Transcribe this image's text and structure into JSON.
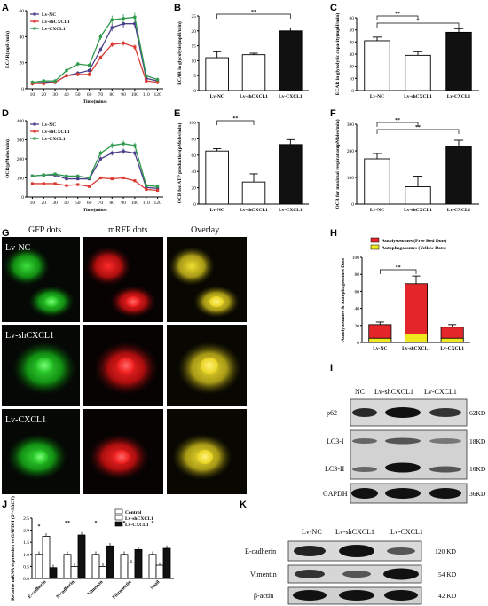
{
  "panels": {
    "A": "A",
    "B": "B",
    "C": "C",
    "D": "D",
    "E": "E",
    "F": "F",
    "G": "G",
    "H": "H",
    "I": "I",
    "J": "J",
    "K": "K"
  },
  "colors": {
    "nc": "#4a3f8a",
    "sh": "#d93a32",
    "cx": "#2f9a4c",
    "green_dot": "#19c419",
    "red_dot": "#e01010",
    "yellow_dot": "#d4c81a"
  },
  "chart_data": [
    {
      "id": "A",
      "type": "line",
      "ylabel": "ECAR(mpH/min)",
      "xlabel": "Time(mins)",
      "x": [
        10,
        20,
        30,
        40,
        50,
        60,
        70,
        80,
        90,
        100,
        110,
        120
      ],
      "xticks": [
        "10",
        "20",
        "30",
        "40",
        "50",
        "60",
        "70",
        "80",
        "90",
        "100",
        "110",
        "120"
      ],
      "yticks": [
        "0",
        "20",
        "40",
        "60"
      ],
      "ylim": [
        0,
        60
      ],
      "series": [
        {
          "name": "Lv-NC",
          "color": "#4a3f8a",
          "values": [
            4,
            5,
            5,
            10,
            12,
            14,
            30,
            47,
            50,
            50,
            8,
            6
          ]
        },
        {
          "name": "Lv-shCXCL1",
          "color": "#d93a32",
          "values": [
            4,
            4,
            5,
            10,
            11,
            11,
            24,
            34,
            35,
            32,
            6,
            5
          ]
        },
        {
          "name": "Lv-CXCL1",
          "color": "#2f9a4c",
          "values": [
            5,
            6,
            6,
            14,
            19,
            18,
            40,
            53,
            54,
            55,
            10,
            7
          ]
        }
      ]
    },
    {
      "id": "B",
      "type": "bar",
      "ylabel": "ECAR in glycolysis(mpH/min)",
      "categories": [
        "Lv-NC",
        "Lv-shCXCL1",
        "Lv-CXCL1"
      ],
      "values": [
        11,
        12,
        20
      ],
      "errors": [
        2,
        0.5,
        1
      ],
      "fills": [
        "#ffffff",
        "#ffffff",
        "#111111"
      ],
      "yticks": [
        "0",
        "5",
        "10",
        "15",
        "20",
        "25"
      ],
      "ylim": [
        0,
        25
      ],
      "sig": [
        {
          "from": 0,
          "to": 2,
          "label": "**"
        }
      ]
    },
    {
      "id": "C",
      "type": "bar",
      "ylabel": "ECAR in glycolytic capacity(mpH/min)",
      "categories": [
        "Lv-NC",
        "Lv-shCXCL1",
        "Lv-CXCL1"
      ],
      "values": [
        41,
        29,
        48
      ],
      "errors": [
        3,
        3,
        3
      ],
      "fills": [
        "#ffffff",
        "#ffffff",
        "#111111"
      ],
      "yticks": [
        "0",
        "10",
        "20",
        "30",
        "40",
        "50",
        "60"
      ],
      "ylim": [
        0,
        60
      ],
      "sig": [
        {
          "from": 0,
          "to": 1,
          "label": "**"
        },
        {
          "from": 0,
          "to": 2,
          "label": "*"
        }
      ]
    },
    {
      "id": "D",
      "type": "line",
      "ylabel": "OCR(pMoles/min)",
      "xlabel": "Time(mins)",
      "x": [
        10,
        20,
        30,
        40,
        50,
        60,
        70,
        80,
        90,
        100,
        110,
        120
      ],
      "xticks": [
        "10",
        "20",
        "30",
        "40",
        "50",
        "60",
        "70",
        "80",
        "90",
        "100",
        "110",
        "120"
      ],
      "yticks": [
        "0",
        "100",
        "200",
        "300",
        "400"
      ],
      "ylim": [
        0,
        400
      ],
      "series": [
        {
          "name": "Lv-NC",
          "color": "#4a3f8a",
          "values": [
            110,
            115,
            115,
            95,
            95,
            95,
            200,
            230,
            240,
            230,
            50,
            45
          ]
        },
        {
          "name": "Lv-shCXCL1",
          "color": "#d93a32",
          "values": [
            70,
            70,
            70,
            60,
            65,
            55,
            100,
            95,
            100,
            85,
            40,
            35
          ]
        },
        {
          "name": "Lv-CXCL1",
          "color": "#2f9a4c",
          "values": [
            110,
            115,
            120,
            110,
            110,
            100,
            230,
            270,
            280,
            270,
            60,
            55
          ]
        }
      ]
    },
    {
      "id": "E",
      "type": "bar",
      "ylabel": "OCR for ATP production(pMoles/min)",
      "categories": [
        "Lv-NC",
        "Lv-shCXCL1",
        "Lv-CXCL1"
      ],
      "values": [
        65,
        27,
        73
      ],
      "errors": [
        3,
        10,
        6
      ],
      "fills": [
        "#ffffff",
        "#ffffff",
        "#111111"
      ],
      "yticks": [
        "0",
        "20",
        "40",
        "60",
        "80",
        "100"
      ],
      "ylim": [
        0,
        100
      ],
      "sig": [
        {
          "from": 0,
          "to": 1,
          "label": "**"
        }
      ]
    },
    {
      "id": "F",
      "type": "bar",
      "ylabel": "OCR for maximal respiration(pMoles/min)",
      "categories": [
        "Lv-NC",
        "Lv-shCXCL1",
        "Lv-CXCL1"
      ],
      "values": [
        170,
        65,
        215
      ],
      "errors": [
        20,
        40,
        25
      ],
      "fills": [
        "#ffffff",
        "#ffffff",
        "#111111"
      ],
      "yticks": [
        "0",
        "100",
        "200",
        "300"
      ],
      "ylim": [
        0,
        300
      ],
      "sig": [
        {
          "from": 0,
          "to": 1,
          "label": "**"
        },
        {
          "from": 0,
          "to": 2,
          "label": "**"
        }
      ]
    },
    {
      "id": "H",
      "type": "bar",
      "ylabel": "Autolysosomes & Autophagosomes Dots",
      "categories": [
        "Lv-NC",
        "Lv-shCXCL1",
        "Lv-CXCL1"
      ],
      "series": [
        {
          "name": "Autophagosomes (Yellow Dots)",
          "color": "#f0e81e",
          "values": [
            5,
            10,
            5
          ]
        },
        {
          "name": "Autolysosomes (Free Red Dots)",
          "color": "#e4262a",
          "values": [
            16,
            59,
            13
          ]
        }
      ],
      "errors": [
        3,
        9,
        3
      ],
      "yticks": [
        "0",
        "20",
        "40",
        "60",
        "80",
        "100"
      ],
      "ylim": [
        0,
        100
      ],
      "sig": [
        {
          "from": 0,
          "to": 1,
          "label": "**"
        }
      ]
    },
    {
      "id": "J",
      "type": "bar",
      "ylabel": "Relative mRNA expression vs GAPDH (2^-ΔΔCT)",
      "categories": [
        "E-cadherin",
        "N-cadherin",
        "Vimentin",
        "Fibronectin",
        "Snail"
      ],
      "series": [
        {
          "name": "Control",
          "color": "#ffffff",
          "values": [
            1.0,
            1.0,
            1.0,
            1.0,
            1.0
          ]
        },
        {
          "name": "Lv-shCXCL1",
          "color": "#ffffff",
          "values": [
            1.75,
            0.5,
            0.5,
            0.65,
            0.55
          ]
        },
        {
          "name": "Lv-CXCL1",
          "color": "#111111",
          "values": [
            0.45,
            1.8,
            1.35,
            1.2,
            1.25
          ]
        }
      ],
      "yticks": [
        "0.0",
        "0.5",
        "1.0",
        "1.5",
        "2.0",
        "2.5"
      ],
      "ylim": [
        0,
        2.5
      ],
      "sig_labels": [
        "*",
        "**",
        "*",
        "*",
        "*"
      ]
    }
  ],
  "microscopy": {
    "headers": [
      "GFP dots",
      "mRFP dots",
      "Overlay"
    ],
    "rows": [
      "Lv-NC",
      "Lv-shCXCL1",
      "Lv-CXCL1"
    ]
  },
  "blot_I": {
    "lanes": [
      "NC",
      "Lv-shCXCL1",
      "Lv-CXCL1"
    ],
    "proteins": [
      "p62",
      "LC3-I",
      "LC3-II",
      "GAPDH"
    ],
    "sizes": [
      "62KD",
      "18KD",
      "16KD",
      "36KD"
    ]
  },
  "blot_K": {
    "lanes": [
      "Lv-NC",
      "Lv-shCXCL1",
      "Lv-CXCL1"
    ],
    "proteins": [
      "E-cadherin",
      "Vimentin",
      "β-actin"
    ],
    "sizes": [
      "120 KD",
      "54 KD",
      "42 KD"
    ]
  }
}
